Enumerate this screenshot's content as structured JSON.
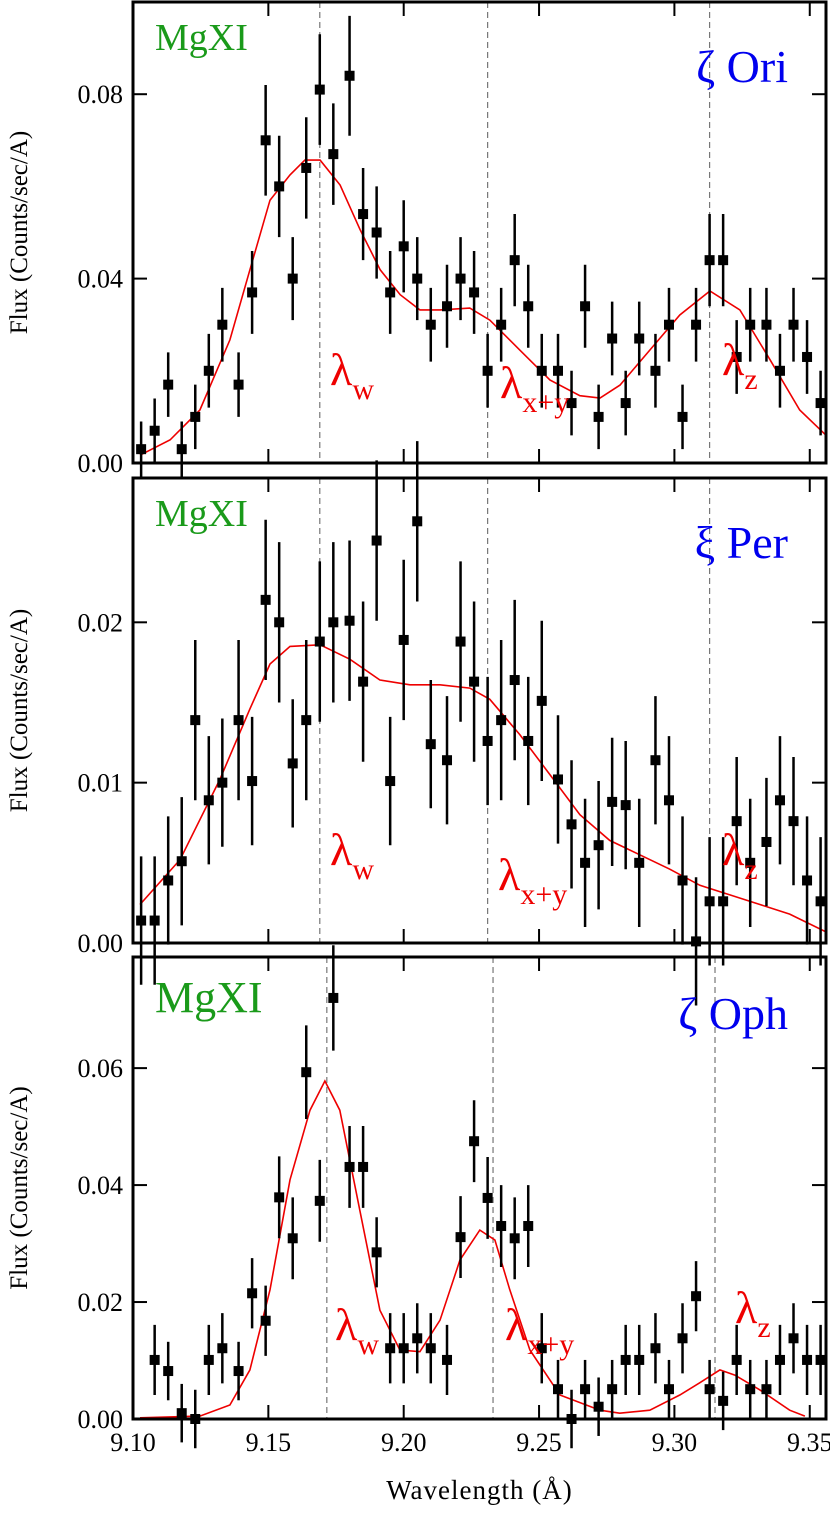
{
  "chart_data": [
    {
      "type": "scatter",
      "title": "ζ Ori",
      "label": "MgXI",
      "ylabel": "Flux (Counts/sec/A)",
      "color": "#000000",
      "x": [
        9.103,
        9.108,
        9.113,
        9.118,
        9.123,
        9.128,
        9.133,
        9.139,
        9.144,
        9.149,
        9.154,
        9.159,
        9.164,
        9.169,
        9.174,
        9.18,
        9.185,
        9.19,
        9.195,
        9.2,
        9.205,
        9.21,
        9.216,
        9.221,
        9.226,
        9.231,
        9.236,
        9.241,
        9.246,
        9.251,
        9.257,
        9.262,
        9.267,
        9.272,
        9.277,
        9.282,
        9.287,
        9.293,
        9.298,
        9.303,
        9.308,
        9.313,
        9.318,
        9.323,
        9.328,
        9.334,
        9.339,
        9.344,
        9.349,
        9.354
      ],
      "values": [
        0.003,
        0.007,
        0.017,
        0.003,
        0.01,
        0.02,
        0.03,
        0.017,
        0.037,
        0.07,
        0.06,
        0.04,
        0.064,
        0.081,
        0.067,
        0.084,
        0.054,
        0.05,
        0.037,
        0.047,
        0.04,
        0.03,
        0.034,
        0.04,
        0.037,
        0.02,
        0.03,
        0.044,
        0.034,
        0.02,
        0.02,
        0.013,
        0.034,
        0.01,
        0.027,
        0.013,
        0.027,
        0.02,
        0.03,
        0.01,
        0.03,
        0.044,
        0.044,
        0.023,
        0.03,
        0.03,
        0.02,
        0.03,
        0.023,
        0.013
      ],
      "errors": [
        0.006,
        0.007,
        0.007,
        0.006,
        0.007,
        0.008,
        0.008,
        0.007,
        0.009,
        0.012,
        0.011,
        0.009,
        0.011,
        0.012,
        0.011,
        0.013,
        0.01,
        0.01,
        0.009,
        0.01,
        0.009,
        0.008,
        0.009,
        0.009,
        0.009,
        0.008,
        0.008,
        0.01,
        0.009,
        0.008,
        0.008,
        0.007,
        0.009,
        0.007,
        0.008,
        0.007,
        0.008,
        0.008,
        0.008,
        0.007,
        0.008,
        0.01,
        0.01,
        0.008,
        0.008,
        0.008,
        0.008,
        0.008,
        0.008,
        0.007
      ],
      "model": {
        "color": "#ee0000",
        "x": [
          9.1026,
          9.1137,
          9.1247,
          9.1358,
          9.1432,
          9.1506,
          9.158,
          9.1635,
          9.1691,
          9.1765,
          9.1839,
          9.1913,
          9.1987,
          9.206,
          9.2134,
          9.2244,
          9.2318,
          9.2429,
          9.254,
          9.2651,
          9.2725,
          9.2799,
          9.2909,
          9.302,
          9.3131,
          9.3242,
          9.3353,
          9.3463,
          9.3559
        ],
        "values": [
          0.0017,
          0.005,
          0.0115,
          0.0267,
          0.0419,
          0.057,
          0.0625,
          0.0657,
          0.0657,
          0.0603,
          0.0506,
          0.0419,
          0.0365,
          0.0332,
          0.0332,
          0.0336,
          0.031,
          0.0245,
          0.018,
          0.0146,
          0.0141,
          0.0169,
          0.0245,
          0.0321,
          0.0373,
          0.0332,
          0.0224,
          0.0115,
          0.0061
        ]
      },
      "reference_lines": [
        9.169,
        9.231,
        9.313
      ],
      "annotations": [
        {
          "text": "λ",
          "sub": "w"
        },
        {
          "text": "λ",
          "sub": "x+y"
        },
        {
          "text": "λ",
          "sub": "z"
        }
      ],
      "xlim": [
        9.1,
        9.356
      ],
      "ylim": [
        0,
        0.1
      ],
      "xticks": [
        9.1,
        9.15,
        9.2,
        9.25,
        9.3,
        9.35
      ],
      "yticks": [
        {
          "value": 0,
          "label": "0.00"
        },
        {
          "value": 0.04,
          "label": "0.04"
        },
        {
          "value": 0.08,
          "label": "0.08"
        }
      ]
    },
    {
      "type": "scatter",
      "title": "ξ Per",
      "label": "MgXI",
      "ylabel": "Flux (Counts/sec/A)",
      "color": "#000000",
      "x": [
        9.103,
        9.108,
        9.113,
        9.118,
        9.123,
        9.128,
        9.133,
        9.139,
        9.144,
        9.149,
        9.154,
        9.159,
        9.164,
        9.169,
        9.174,
        9.18,
        9.185,
        9.19,
        9.195,
        9.2,
        9.205,
        9.21,
        9.216,
        9.221,
        9.226,
        9.231,
        9.236,
        9.241,
        9.246,
        9.251,
        9.257,
        9.262,
        9.267,
        9.272,
        9.277,
        9.282,
        9.287,
        9.293,
        9.298,
        9.303,
        9.308,
        9.313,
        9.318,
        9.323,
        9.328,
        9.334,
        9.339,
        9.344,
        9.349,
        9.354
      ],
      "values": [
        0.0014,
        0.0014,
        0.0039,
        0.0051,
        0.0139,
        0.0089,
        0.01,
        0.0139,
        0.0101,
        0.0214,
        0.02,
        0.0112,
        0.0139,
        0.0188,
        0.02,
        0.0201,
        0.0163,
        0.0251,
        0.0101,
        0.0189,
        0.0263,
        0.0124,
        0.0114,
        0.0188,
        0.0163,
        0.0126,
        0.0139,
        0.0164,
        0.0126,
        0.0151,
        0.0102,
        0.0074,
        0.005,
        0.0061,
        0.0088,
        0.0086,
        0.005,
        0.0114,
        0.0089,
        0.0039,
        0.0001,
        0.0026,
        0.0026,
        0.0076,
        0.005,
        0.0063,
        0.0089,
        0.0076,
        0.0039,
        0.0026
      ],
      "errors": [
        0.004,
        0.004,
        0.004,
        0.004,
        0.005,
        0.004,
        0.004,
        0.005,
        0.004,
        0.005,
        0.005,
        0.004,
        0.005,
        0.005,
        0.005,
        0.005,
        0.005,
        0.005,
        0.004,
        0.005,
        0.005,
        0.004,
        0.004,
        0.005,
        0.005,
        0.004,
        0.005,
        0.005,
        0.004,
        0.005,
        0.004,
        0.004,
        0.004,
        0.004,
        0.004,
        0.004,
        0.004,
        0.004,
        0.004,
        0.004,
        0.004,
        0.004,
        0.004,
        0.004,
        0.004,
        0.004,
        0.004,
        0.004,
        0.004,
        0.004
      ],
      "model": {
        "color": "#ee0000",
        "x": [
          9.1026,
          9.1174,
          9.1321,
          9.1432,
          9.1506,
          9.158,
          9.1691,
          9.1801,
          9.1912,
          9.2023,
          9.2134,
          9.2244,
          9.2318,
          9.2429,
          9.254,
          9.2651,
          9.2761,
          9.2872,
          9.2983,
          9.3094,
          9.3205,
          9.3316,
          9.3426,
          9.3559
        ],
        "values": [
          0.0024,
          0.0052,
          0.0102,
          0.0146,
          0.0174,
          0.0185,
          0.0186,
          0.0177,
          0.0164,
          0.0161,
          0.0161,
          0.0159,
          0.0152,
          0.013,
          0.0105,
          0.008,
          0.0064,
          0.0055,
          0.0046,
          0.0036,
          0.003,
          0.0024,
          0.0018,
          0.0007
        ]
      },
      "reference_lines": [
        9.169,
        9.231,
        9.313
      ],
      "annotations": [
        {
          "text": "λ",
          "sub": "w"
        },
        {
          "text": "λ",
          "sub": "x+y"
        },
        {
          "text": "λ",
          "sub": "z"
        }
      ],
      "xlim": [
        9.1,
        9.356
      ],
      "ylim": [
        0,
        0.029
      ],
      "xticks": [
        9.1,
        9.15,
        9.2,
        9.25,
        9.3,
        9.35
      ],
      "yticks": [
        {
          "value": 0,
          "label": "0.00"
        },
        {
          "value": 0.01,
          "label": "0.01"
        },
        {
          "value": 0.02,
          "label": "0.02"
        }
      ]
    },
    {
      "type": "scatter",
      "title": "ζ Oph",
      "label": "MgXI",
      "ylabel": "Flux (Counts/sec/A)",
      "xlabel": "Wavelength (Å)",
      "color": "#000000",
      "x": [
        9.108,
        9.113,
        9.118,
        9.123,
        9.128,
        9.133,
        9.139,
        9.144,
        9.149,
        9.154,
        9.159,
        9.164,
        9.169,
        9.174,
        9.18,
        9.185,
        9.19,
        9.195,
        9.2,
        9.205,
        9.21,
        9.216,
        9.221,
        9.226,
        9.231,
        9.236,
        9.241,
        9.246,
        9.251,
        9.257,
        9.262,
        9.267,
        9.272,
        9.277,
        9.282,
        9.287,
        9.293,
        9.298,
        9.303,
        9.308,
        9.313,
        9.318,
        9.323,
        9.328,
        9.334,
        9.339,
        9.344,
        9.349,
        9.354
      ],
      "values": [
        0.0101,
        0.0082,
        0.001,
        0.0,
        0.0101,
        0.0121,
        0.0082,
        0.0215,
        0.0168,
        0.0379,
        0.0309,
        0.0593,
        0.0373,
        0.072,
        0.0431,
        0.0431,
        0.0285,
        0.0121,
        0.0121,
        0.0138,
        0.0121,
        0.0101,
        0.0311,
        0.0475,
        0.0378,
        0.033,
        0.0309,
        0.033,
        0.0121,
        0.0051,
        0.0,
        0.0051,
        0.0021,
        0.0051,
        0.0101,
        0.0101,
        0.0121,
        0.0051,
        0.0138,
        0.021,
        0.0051,
        0.0031,
        0.0101,
        0.0051,
        0.0051,
        0.0101,
        0.0138,
        0.0101,
        0.0101
      ],
      "errors": [
        0.006,
        0.005,
        0.005,
        0.005,
        0.006,
        0.006,
        0.005,
        0.006,
        0.006,
        0.007,
        0.007,
        0.008,
        0.007,
        0.009,
        0.007,
        0.007,
        0.006,
        0.006,
        0.006,
        0.006,
        0.006,
        0.006,
        0.007,
        0.007,
        0.007,
        0.007,
        0.007,
        0.007,
        0.006,
        0.005,
        0.005,
        0.005,
        0.005,
        0.005,
        0.006,
        0.006,
        0.006,
        0.005,
        0.006,
        0.006,
        0.005,
        0.005,
        0.006,
        0.005,
        0.005,
        0.006,
        0.006,
        0.006,
        0.006
      ],
      "model": {
        "color": "#ee0000",
        "x": [
          9.1026,
          9.1247,
          9.1358,
          9.1432,
          9.1506,
          9.158,
          9.1654,
          9.1709,
          9.1764,
          9.1838,
          9.1912,
          9.1986,
          9.206,
          9.2134,
          9.2208,
          9.2281,
          9.2337,
          9.2392,
          9.2466,
          9.2577,
          9.2725,
          9.2798,
          9.2909,
          9.302,
          9.3094,
          9.3168,
          9.3223,
          9.3315,
          9.3426,
          9.3482
        ],
        "values": [
          0.0002,
          0.0005,
          0.0024,
          0.0084,
          0.0221,
          0.0409,
          0.0528,
          0.0578,
          0.0528,
          0.0357,
          0.0186,
          0.0118,
          0.0115,
          0.0169,
          0.0272,
          0.0323,
          0.0306,
          0.0221,
          0.0118,
          0.0041,
          0.0015,
          0.001,
          0.0015,
          0.0041,
          0.0062,
          0.0084,
          0.0075,
          0.005,
          0.0015,
          0.0005
        ]
      },
      "reference_lines": [
        9.1716,
        9.233,
        9.315
      ],
      "annotations": [
        {
          "text": "λ",
          "sub": "w"
        },
        {
          "text": "λ",
          "sub": "x+y"
        },
        {
          "text": "λ",
          "sub": "z"
        }
      ],
      "xlim": [
        9.1,
        9.356
      ],
      "ylim": [
        0,
        0.079
      ],
      "xticks": [
        {
          "value": 9.1,
          "label": "9.10"
        },
        {
          "value": 9.15,
          "label": "9.15"
        },
        {
          "value": 9.2,
          "label": "9.20"
        },
        {
          "value": 9.25,
          "label": "9.25"
        },
        {
          "value": 9.3,
          "label": "9.30"
        },
        {
          "value": 9.35,
          "label": "9.35"
        }
      ],
      "yticks": [
        {
          "value": 0,
          "label": "0.00"
        },
        {
          "value": 0.02,
          "label": "0.02"
        },
        {
          "value": 0.04,
          "label": "0.04"
        },
        {
          "value": 0.06,
          "label": "0.06"
        }
      ]
    }
  ]
}
